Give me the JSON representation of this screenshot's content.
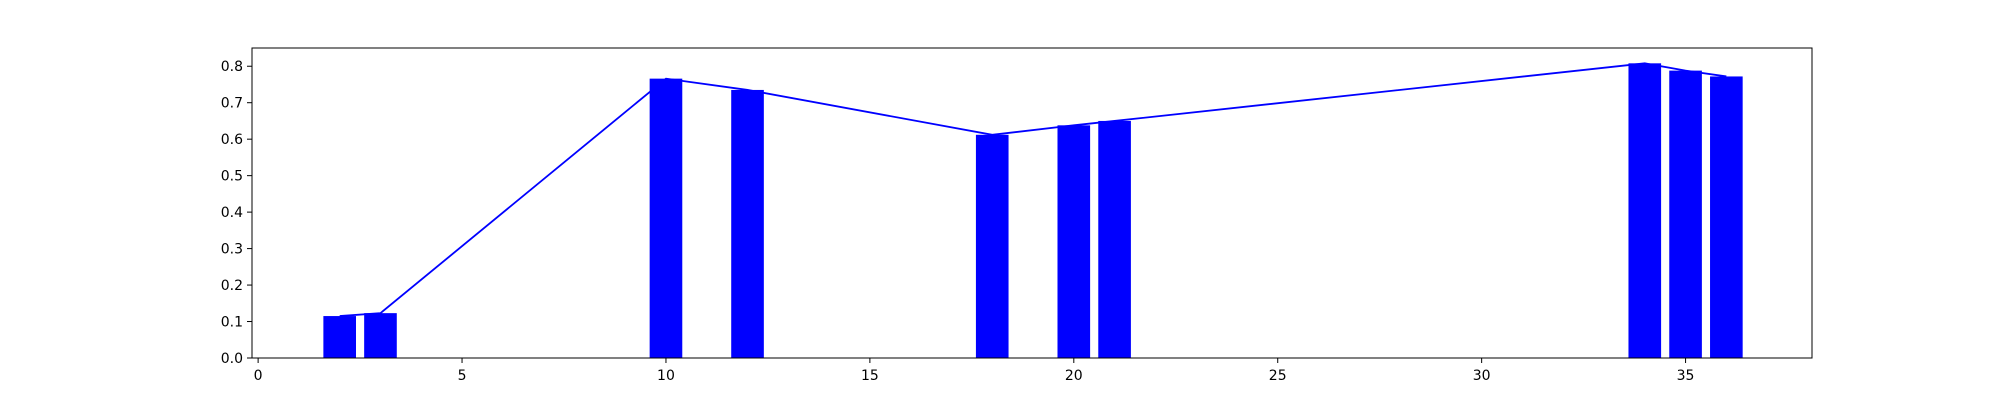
{
  "chart_data": {
    "type": "bar",
    "title": "",
    "xlabel": "",
    "ylabel": "",
    "xlim": [
      -0.15,
      38.1
    ],
    "ylim": [
      0,
      0.85
    ],
    "grid": false,
    "x_ticks": [
      0,
      5,
      10,
      15,
      20,
      25,
      30,
      35
    ],
    "y_ticks": [
      0.0,
      0.1,
      0.2,
      0.3,
      0.4,
      0.5,
      0.6,
      0.7,
      0.8
    ],
    "x_tick_labels": [
      "0",
      "5",
      "10",
      "15",
      "20",
      "25",
      "30",
      "35"
    ],
    "y_tick_labels": [
      "0.0",
      "0.1",
      "0.2",
      "0.3",
      "0.4",
      "0.5",
      "0.6",
      "0.7",
      "0.8"
    ],
    "bar_width": 0.8,
    "bars": {
      "x": [
        2,
        3,
        10,
        12,
        18,
        20,
        21,
        34,
        35,
        36
      ],
      "values": [
        0.115,
        0.123,
        0.766,
        0.735,
        0.612,
        0.638,
        0.65,
        0.808,
        0.788,
        0.772
      ],
      "color": "#0000ff"
    },
    "line": {
      "x": [
        2,
        3,
        10,
        12,
        18,
        20,
        21,
        34,
        35,
        36
      ],
      "values": [
        0.115,
        0.123,
        0.766,
        0.735,
        0.612,
        0.638,
        0.65,
        0.808,
        0.788,
        0.772
      ],
      "color": "#0000ff"
    }
  }
}
